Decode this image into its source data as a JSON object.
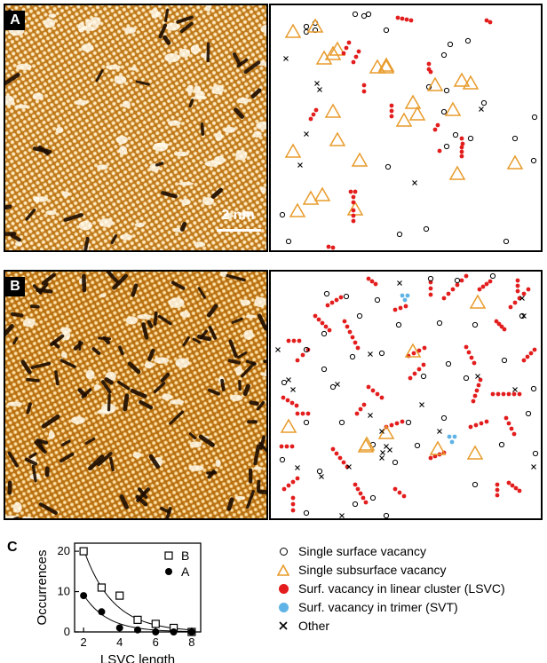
{
  "panels": {
    "a_label": "A",
    "b_label": "B",
    "c_label": "C"
  },
  "scale_label": "2 nm",
  "colors": {
    "single_surface": "#000000",
    "subsurface": "#e89b2b",
    "lsvc": "#e31d1d",
    "svt": "#5fb3e6",
    "other": "#000000",
    "stm_base": "#c8801e"
  },
  "legend": [
    {
      "symbol": "open-circle",
      "label": "Single surface vacancy"
    },
    {
      "symbol": "orange-triangle",
      "label": "Single subsurface vacancy"
    },
    {
      "symbol": "red-dot",
      "label": "Surf. vacancy in linear cluster (LSVC)"
    },
    {
      "symbol": "blue-dot",
      "label": "Surf. vacancy in trimer (SVT)"
    },
    {
      "symbol": "cross",
      "label": "Other"
    }
  ],
  "chart_data": {
    "type": "scatter",
    "xlabel": "LSVC length",
    "ylabel": "Occurrences",
    "xlim": [
      1.5,
      8.5
    ],
    "ylim": [
      0,
      22
    ],
    "xticks": [
      2,
      4,
      6,
      8
    ],
    "yticks": [
      0,
      10,
      20
    ],
    "series": [
      {
        "name": "B",
        "marker": "open-square",
        "x": [
          2,
          3,
          4,
          5,
          6,
          7,
          8
        ],
        "y": [
          20,
          11,
          9,
          3,
          2,
          1,
          0
        ]
      },
      {
        "name": "A",
        "marker": "filled-circle",
        "x": [
          2,
          3,
          4,
          5,
          6,
          7,
          8
        ],
        "y": [
          9,
          5,
          1,
          0.5,
          0,
          0,
          0
        ]
      }
    ]
  }
}
